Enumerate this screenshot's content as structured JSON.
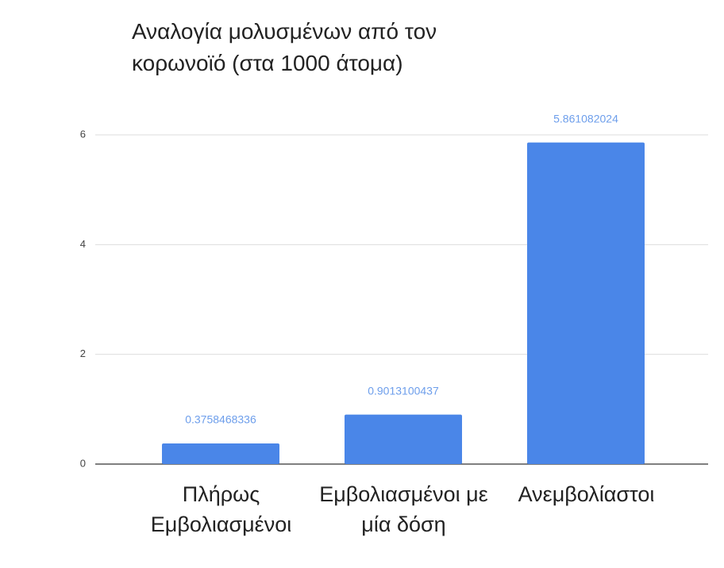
{
  "chart_data": {
    "type": "bar",
    "title": "Αναλογία μολυσμένων από τον κορωνοϊό (στα 1000 άτομα)",
    "categories": [
      "Πλήρως Εμβολιασμένοι",
      "Εμβολιασμένοι με μία δόση",
      "Ανεμβολίαστοι"
    ],
    "values": [
      0.3758468336,
      0.9013100437,
      5.861082024
    ],
    "color": "#4a86e8",
    "ylim": [
      0,
      6
    ],
    "yticks": [
      0,
      2,
      4,
      6
    ],
    "grid": true
  }
}
